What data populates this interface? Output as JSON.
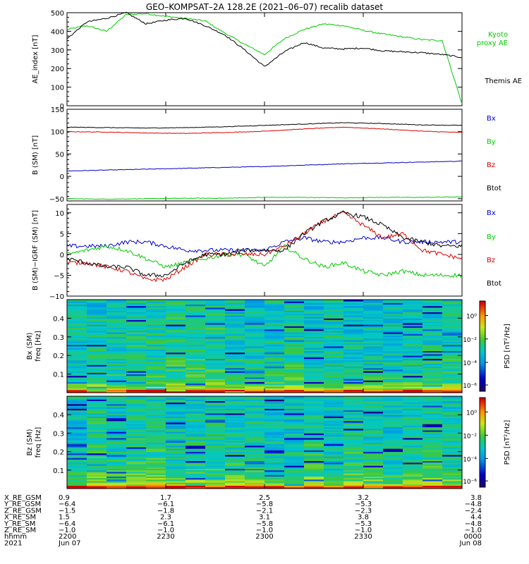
{
  "title": "GEO–KOMPSAT–2A 128.2E (2021–06–07) recalib dataset",
  "chart_data": [
    {
      "type": "line",
      "panel": "ae",
      "ylabel": "AE_index [nT]",
      "ylim": [
        0,
        500
      ],
      "yticks": [
        "0",
        "100",
        "200",
        "300",
        "400",
        "500"
      ],
      "x_hours": [
        0,
        0.05,
        0.1,
        0.15,
        0.2,
        0.25,
        0.3,
        0.35,
        0.4,
        0.45,
        0.5,
        0.55,
        0.6,
        0.65,
        0.7,
        0.75,
        0.8,
        0.85,
        0.9,
        0.95,
        1.0
      ],
      "series": [
        {
          "name": "Kyoto proxy AE",
          "color": "#00cc00",
          "values": [
            410,
            430,
            400,
            490,
            495,
            480,
            470,
            455,
            390,
            330,
            275,
            360,
            410,
            440,
            430,
            405,
            385,
            370,
            355,
            350,
            10
          ]
        },
        {
          "name": "Themis AE",
          "color": "#000000",
          "values": [
            360,
            450,
            470,
            500,
            440,
            460,
            470,
            430,
            380,
            300,
            210,
            290,
            340,
            310,
            305,
            310,
            295,
            290,
            285,
            275,
            260
          ]
        }
      ],
      "legend": [
        "Kyoto",
        "proxy AE",
        "Themis AE"
      ]
    },
    {
      "type": "line",
      "panel": "b",
      "ylabel": "B (SM) [nT]",
      "ylim": [
        -55,
        150
      ],
      "yticks": [
        "−50",
        "0",
        "50",
        "100",
        "150"
      ],
      "x_hours": [
        0,
        0.1,
        0.2,
        0.3,
        0.4,
        0.5,
        0.6,
        0.7,
        0.8,
        0.9,
        1.0
      ],
      "series": [
        {
          "name": "Bx",
          "color": "#0000cc",
          "values": [
            12,
            14,
            16,
            18,
            20,
            22,
            25,
            28,
            30,
            32,
            34
          ]
        },
        {
          "name": "By",
          "color": "#00cc00",
          "values": [
            -50,
            -51,
            -50,
            -49,
            -49,
            -47,
            -47,
            -48,
            -47,
            -47,
            -46
          ]
        },
        {
          "name": "Bz",
          "color": "#dd0000",
          "values": [
            100,
            99,
            97,
            96,
            98,
            101,
            106,
            110,
            106,
            101,
            98
          ]
        },
        {
          "name": "Btot",
          "color": "#000000",
          "values": [
            110,
            109,
            108,
            109,
            111,
            114,
            117,
            120,
            118,
            115,
            114
          ]
        }
      ],
      "legend": [
        "Bx",
        "By",
        "Bz",
        "Btot"
      ]
    },
    {
      "type": "line",
      "panel": "db",
      "ylabel": "B (SM)−IGRF (SM) [nT]",
      "ylim": [
        -10,
        12
      ],
      "yticks": [
        "−10",
        "−5",
        "0",
        "5",
        "10"
      ],
      "x_hours": [
        0,
        0.05,
        0.1,
        0.15,
        0.2,
        0.25,
        0.3,
        0.35,
        0.4,
        0.45,
        0.5,
        0.55,
        0.6,
        0.65,
        0.7,
        0.75,
        0.8,
        0.85,
        0.9,
        0.95,
        1.0
      ],
      "series": [
        {
          "name": "Bx",
          "color": "#0000cc",
          "values": [
            2,
            2,
            2,
            3,
            3,
            2,
            1,
            1,
            1,
            1,
            1,
            3,
            4,
            3,
            3,
            4,
            4,
            3,
            3,
            3,
            3
          ]
        },
        {
          "name": "By",
          "color": "#00cc00",
          "values": [
            0,
            1,
            2,
            1,
            -1,
            -3,
            -2,
            -1,
            0,
            0,
            -3,
            2,
            -1,
            -3,
            -2,
            -4,
            -5,
            -4,
            -5,
            -5,
            -5
          ]
        },
        {
          "name": "Bz",
          "color": "#dd0000",
          "values": [
            -2,
            -2,
            -3,
            -4,
            -6,
            -6,
            -3,
            0,
            0,
            0,
            0,
            2,
            5,
            8,
            10,
            7,
            4,
            5,
            1,
            0,
            -1
          ]
        },
        {
          "name": "Btot",
          "color": "#000000",
          "values": [
            -1,
            -2,
            -3,
            -3,
            -5,
            -5,
            -2,
            0,
            0,
            1,
            1,
            1,
            5,
            8,
            10,
            9,
            7,
            4,
            3,
            2,
            2
          ]
        }
      ],
      "legend": [
        "Bx",
        "By",
        "Bz",
        "Btot"
      ]
    },
    {
      "type": "heatmap",
      "panel": "spec_bx",
      "ylabel": "Bx (SM) freq [Hz]",
      "ylim": [
        0,
        0.5
      ],
      "yticks": [
        "0.1",
        "0.2",
        "0.3",
        "0.4"
      ],
      "colorbar_label": "PSD [nT²/Hz]",
      "colorbar_ticks": [
        "10⁰",
        "10⁻²",
        "10⁻⁴",
        "10⁻⁶"
      ]
    },
    {
      "type": "heatmap",
      "panel": "spec_bz",
      "ylabel": "Bz (SM) freq [Hz]",
      "ylim": [
        0,
        0.5
      ],
      "yticks": [
        "0.1",
        "0.2",
        "0.3",
        "0.4"
      ],
      "colorbar_label": "PSD [nT²/Hz]",
      "colorbar_ticks": [
        "10⁰",
        "10⁻²",
        "10⁻⁴",
        "10⁻⁶"
      ]
    }
  ],
  "x_axis": {
    "row_labels": [
      "X_RE_GSM",
      "Y_RE_GSM",
      "Z_RE_GSM",
      "X_RE_SM",
      "Y_RE_SM",
      "Z_RE_SM",
      "hhmm",
      "2021"
    ],
    "columns": [
      {
        "values": [
          "0.9",
          "−6.4",
          "−1.5",
          "1.5",
          "−6.4",
          "−1.0",
          "2200",
          "Jun 07"
        ]
      },
      {
        "values": [
          "1.7",
          "−6.1",
          "−1.8",
          "2.3",
          "−6.1",
          "−1.0",
          "2230",
          ""
        ]
      },
      {
        "values": [
          "2.5",
          "−5.8",
          "−2.1",
          "3.1",
          "−5.8",
          "−1.0",
          "2300",
          ""
        ]
      },
      {
        "values": [
          "3.2",
          "−5.3",
          "−2.3",
          "3.8",
          "−5.3",
          "−1.0",
          "2330",
          ""
        ]
      },
      {
        "values": [
          "3.8",
          "−4.8",
          "−2.4",
          "4.4",
          "−4.8",
          "−1.0",
          "0000",
          "Jun 08"
        ]
      }
    ]
  }
}
